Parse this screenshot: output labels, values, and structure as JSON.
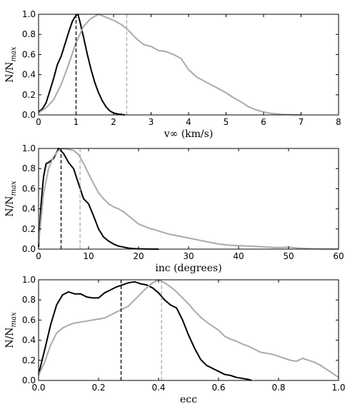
{
  "chart_data": [
    {
      "type": "line",
      "xlabel": "v∞  (km/s)",
      "ylabel": "N/N",
      "ylabel_sub": "max",
      "xlim": [
        0,
        8
      ],
      "ylim": [
        0,
        1.0
      ],
      "xticks": [
        "0",
        "1",
        "2",
        "3",
        "4",
        "5",
        "6",
        "7",
        "8"
      ],
      "yticks": [
        "0.0",
        "0.2",
        "0.4",
        "0.6",
        "0.8",
        "1.0"
      ],
      "series": [
        {
          "color": "#000000",
          "x": [
            0,
            0.1,
            0.2,
            0.3,
            0.4,
            0.5,
            0.6,
            0.7,
            0.8,
            0.9,
            1.0,
            1.05,
            1.1,
            1.2,
            1.3,
            1.4,
            1.5,
            1.6,
            1.7,
            1.8,
            1.9,
            2.0,
            2.1,
            2.2,
            2.3
          ],
          "y": [
            0.03,
            0.06,
            0.12,
            0.24,
            0.36,
            0.5,
            0.58,
            0.7,
            0.82,
            0.93,
            0.99,
            1.0,
            0.93,
            0.77,
            0.6,
            0.45,
            0.32,
            0.22,
            0.14,
            0.08,
            0.04,
            0.02,
            0.01,
            0.005,
            0.0
          ]
        },
        {
          "color": "#aaaaaa",
          "x": [
            0,
            0.2,
            0.4,
            0.6,
            0.8,
            1.0,
            1.2,
            1.4,
            1.6,
            1.8,
            2.0,
            2.2,
            2.4,
            2.6,
            2.8,
            3.0,
            3.2,
            3.4,
            3.6,
            3.8,
            4.0,
            4.2,
            4.4,
            4.6,
            4.8,
            5.0,
            5.2,
            5.4,
            5.6,
            5.8,
            6.0,
            6.2,
            6.5,
            7.0
          ],
          "y": [
            0.02,
            0.07,
            0.15,
            0.3,
            0.5,
            0.72,
            0.88,
            0.96,
            1.0,
            0.97,
            0.94,
            0.9,
            0.84,
            0.76,
            0.7,
            0.68,
            0.64,
            0.63,
            0.6,
            0.56,
            0.45,
            0.38,
            0.34,
            0.3,
            0.26,
            0.22,
            0.17,
            0.13,
            0.08,
            0.05,
            0.03,
            0.015,
            0.005,
            0.0
          ]
        }
      ],
      "vlines": [
        {
          "x": 1.0,
          "color": "#000000"
        },
        {
          "x": 2.35,
          "color": "#aaaaaa"
        }
      ]
    },
    {
      "type": "line",
      "xlabel": "inc (degrees)",
      "ylabel": "N/N",
      "ylabel_sub": "max",
      "xlim": [
        0,
        60
      ],
      "ylim": [
        0,
        1.0
      ],
      "xticks": [
        "0",
        "10",
        "20",
        "30",
        "40",
        "50",
        "60"
      ],
      "yticks": [
        "0.0",
        "0.2",
        "0.4",
        "0.6",
        "0.8",
        "1.0"
      ],
      "series": [
        {
          "color": "#000000",
          "x": [
            0,
            0.5,
            1,
            1.5,
            2,
            3,
            4,
            5,
            6,
            7,
            8,
            9,
            10,
            11,
            12,
            13,
            14,
            15,
            16,
            17,
            18,
            19,
            20,
            22,
            24
          ],
          "y": [
            0.02,
            0.45,
            0.72,
            0.85,
            0.86,
            0.9,
            1.0,
            0.95,
            0.86,
            0.8,
            0.65,
            0.5,
            0.45,
            0.33,
            0.2,
            0.12,
            0.08,
            0.05,
            0.03,
            0.02,
            0.01,
            0.005,
            0.003,
            0.001,
            0.0
          ]
        },
        {
          "color": "#aaaaaa",
          "x": [
            0,
            1,
            2,
            3,
            4,
            5,
            6,
            7,
            8,
            9,
            10,
            11,
            12,
            13,
            14,
            15,
            16,
            17,
            18,
            20,
            22,
            24,
            26,
            28,
            30,
            32,
            34,
            36,
            38,
            40,
            42,
            44,
            46,
            48,
            50,
            52,
            54,
            56,
            58,
            60
          ],
          "y": [
            0.05,
            0.55,
            0.8,
            0.92,
            0.98,
            1.0,
            0.99,
            0.98,
            0.94,
            0.85,
            0.75,
            0.65,
            0.56,
            0.5,
            0.45,
            0.42,
            0.4,
            0.37,
            0.33,
            0.25,
            0.21,
            0.18,
            0.15,
            0.13,
            0.11,
            0.09,
            0.07,
            0.05,
            0.04,
            0.035,
            0.03,
            0.025,
            0.02,
            0.015,
            0.02,
            0.01,
            0.005,
            0.003,
            0.001,
            0.0
          ]
        }
      ],
      "vlines": [
        {
          "x": 4.5,
          "color": "#000000"
        },
        {
          "x": 8.3,
          "color": "#aaaaaa"
        }
      ]
    },
    {
      "type": "line",
      "xlabel": "ecc",
      "ylabel": "N/N",
      "ylabel_sub": "max",
      "xlim": [
        0,
        1.0
      ],
      "ylim": [
        0,
        1.0
      ],
      "xticks": [
        "0.0",
        "0.2",
        "0.4",
        "0.6",
        "0.8",
        "1.0"
      ],
      "yticks": [
        "0.0",
        "0.2",
        "0.4",
        "0.6",
        "0.8",
        "1.0"
      ],
      "series": [
        {
          "color": "#000000",
          "x": [
            0,
            0.02,
            0.04,
            0.06,
            0.08,
            0.1,
            0.12,
            0.14,
            0.16,
            0.18,
            0.2,
            0.22,
            0.24,
            0.26,
            0.28,
            0.3,
            0.32,
            0.34,
            0.36,
            0.38,
            0.4,
            0.42,
            0.44,
            0.46,
            0.48,
            0.5,
            0.52,
            0.54,
            0.56,
            0.58,
            0.6,
            0.62,
            0.64,
            0.66,
            0.68,
            0.7,
            0.71
          ],
          "y": [
            0.06,
            0.3,
            0.55,
            0.75,
            0.85,
            0.88,
            0.86,
            0.86,
            0.83,
            0.82,
            0.82,
            0.87,
            0.9,
            0.93,
            0.95,
            0.97,
            0.98,
            0.96,
            0.95,
            0.92,
            0.87,
            0.8,
            0.75,
            0.72,
            0.6,
            0.45,
            0.32,
            0.21,
            0.15,
            0.12,
            0.09,
            0.06,
            0.05,
            0.03,
            0.02,
            0.01,
            0.0
          ]
        },
        {
          "color": "#aaaaaa",
          "x": [
            0,
            0.02,
            0.04,
            0.06,
            0.08,
            0.1,
            0.12,
            0.14,
            0.16,
            0.18,
            0.2,
            0.22,
            0.24,
            0.26,
            0.28,
            0.3,
            0.32,
            0.34,
            0.36,
            0.38,
            0.4,
            0.42,
            0.44,
            0.46,
            0.48,
            0.5,
            0.52,
            0.54,
            0.56,
            0.58,
            0.6,
            0.62,
            0.64,
            0.66,
            0.68,
            0.7,
            0.72,
            0.74,
            0.76,
            0.78,
            0.8,
            0.82,
            0.84,
            0.86,
            0.88,
            0.9,
            0.92,
            0.94,
            0.96,
            0.98,
            1.0
          ],
          "y": [
            0.05,
            0.18,
            0.35,
            0.47,
            0.52,
            0.55,
            0.57,
            0.58,
            0.59,
            0.6,
            0.61,
            0.62,
            0.65,
            0.68,
            0.71,
            0.74,
            0.8,
            0.86,
            0.92,
            0.97,
            1.0,
            0.97,
            0.93,
            0.88,
            0.82,
            0.76,
            0.69,
            0.63,
            0.58,
            0.54,
            0.5,
            0.44,
            0.41,
            0.39,
            0.36,
            0.34,
            0.31,
            0.28,
            0.27,
            0.26,
            0.24,
            0.22,
            0.2,
            0.19,
            0.22,
            0.2,
            0.18,
            0.15,
            0.11,
            0.07,
            0.03
          ]
        }
      ],
      "vlines": [
        {
          "x": 0.275,
          "color": "#000000"
        },
        {
          "x": 0.41,
          "color": "#aaaaaa"
        }
      ]
    }
  ]
}
